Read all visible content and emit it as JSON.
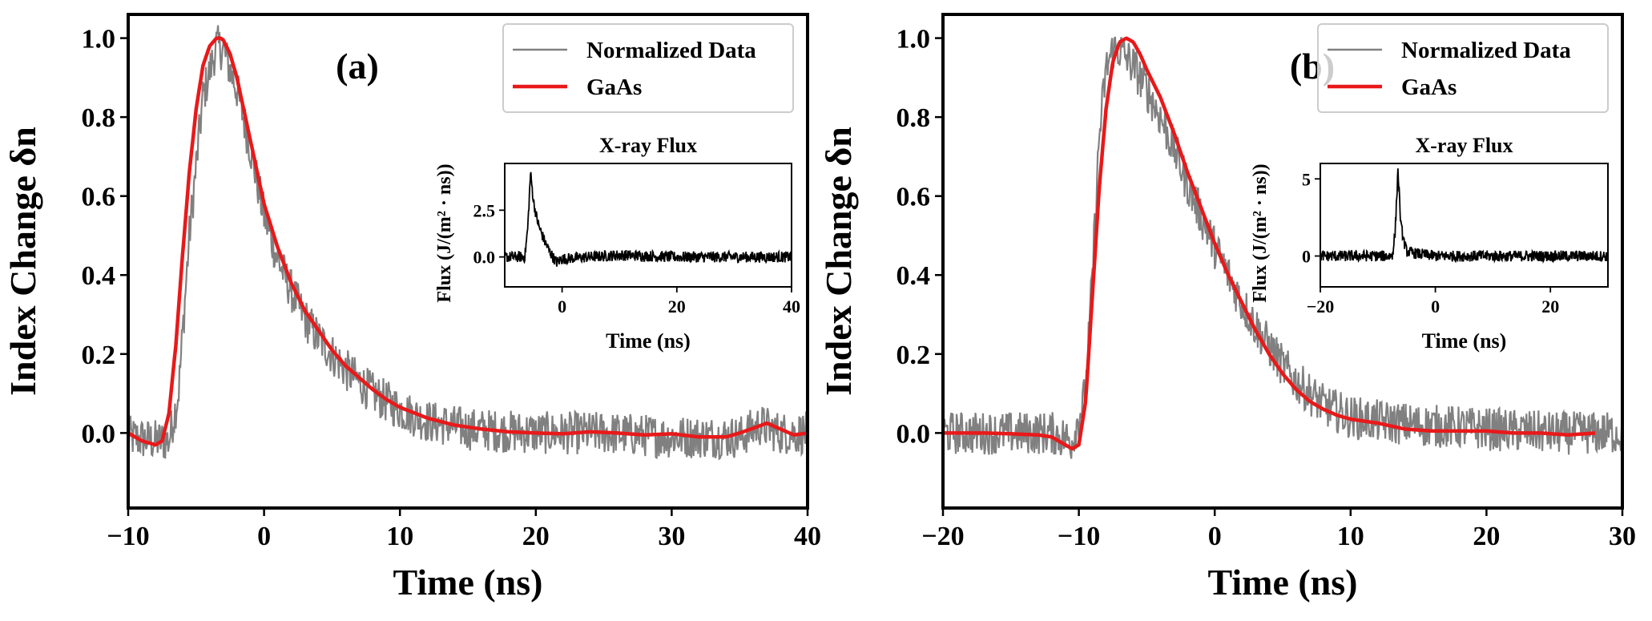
{
  "chart_data": [
    {
      "type": "line",
      "panel_label": "(a)",
      "xlabel": "Time (ns)",
      "ylabel": "Index Change δn",
      "xlim": [
        -10,
        40
      ],
      "ylim": [
        -0.19,
        1.06
      ],
      "xticks": [
        -10,
        0,
        10,
        20,
        30,
        40
      ],
      "xtick_labels": [
        "−10",
        "0",
        "10",
        "20",
        "30",
        "40"
      ],
      "yticks": [
        0.0,
        0.2,
        0.4,
        0.6,
        0.8,
        1.0
      ],
      "ytick_labels": [
        "0.0",
        "0.2",
        "0.4",
        "0.6",
        "0.8",
        "1.0"
      ],
      "legend_position": "top-right",
      "series": [
        {
          "name": "Normalized Data",
          "color": "#808080",
          "noisy": true,
          "x": [
            -10,
            -8,
            -7,
            -6.3,
            -5.5,
            -4.5,
            -3.5,
            -3,
            -2,
            -1,
            0,
            1,
            2,
            3,
            4,
            5,
            6,
            8,
            10,
            12,
            15,
            20,
            25,
            30,
            35,
            36.5,
            38,
            40
          ],
          "y": [
            -0.01,
            -0.02,
            -0.02,
            0.1,
            0.5,
            0.85,
            0.98,
            0.97,
            0.87,
            0.72,
            0.55,
            0.44,
            0.36,
            0.29,
            0.24,
            0.2,
            0.16,
            0.1,
            0.06,
            0.03,
            0.01,
            0.0,
            0.0,
            -0.01,
            -0.01,
            0.02,
            0.0,
            0.0
          ]
        },
        {
          "name": "GaAs",
          "color": "#e8191a",
          "x": [
            -10,
            -9,
            -8,
            -7.5,
            -7,
            -6.5,
            -6,
            -5.5,
            -5,
            -4.5,
            -4,
            -3.5,
            -3.2,
            -3,
            -2.5,
            -2,
            -1.5,
            -1,
            -0.5,
            0,
            1,
            2,
            3,
            4,
            5,
            6,
            7,
            8,
            9,
            10,
            12,
            14,
            16,
            18,
            20,
            22,
            24,
            26,
            28,
            30,
            32,
            34,
            35,
            36,
            37,
            38,
            39,
            40
          ],
          "y": [
            0.0,
            -0.02,
            -0.03,
            -0.02,
            0.05,
            0.22,
            0.45,
            0.66,
            0.82,
            0.93,
            0.98,
            1.0,
            1.0,
            0.995,
            0.96,
            0.9,
            0.82,
            0.74,
            0.66,
            0.58,
            0.47,
            0.38,
            0.31,
            0.26,
            0.21,
            0.17,
            0.14,
            0.11,
            0.085,
            0.065,
            0.038,
            0.02,
            0.01,
            0.003,
            0.0,
            -0.002,
            0.003,
            0.0,
            -0.005,
            -0.002,
            -0.01,
            -0.01,
            0.0,
            0.012,
            0.025,
            0.01,
            -0.005,
            0.0
          ]
        }
      ],
      "inset": {
        "title": "X-ray Flux",
        "xlabel": "Time (ns)",
        "ylabel": "Flux (J/(m² · ns))",
        "xlim": [
          -10,
          40
        ],
        "ylim": [
          -1.6,
          5.0
        ],
        "xticks": [
          0,
          20,
          40
        ],
        "xtick_labels": [
          "0",
          "20",
          "40"
        ],
        "yticks": [
          0.0,
          2.5
        ],
        "ytick_labels": [
          "0.0",
          "2.5"
        ],
        "series": [
          {
            "name": "X-ray Flux",
            "color": "#000000",
            "noisy": true,
            "x": [
              -10,
              -6.5,
              -6,
              -5.5,
              -5,
              -4.5,
              -4,
              -3,
              -2,
              -1,
              0,
              10,
              20,
              30,
              40
            ],
            "y": [
              0.0,
              0.0,
              1.5,
              4.5,
              3.0,
              2.2,
              1.6,
              0.8,
              0.2,
              -0.3,
              -0.1,
              0.1,
              0.0,
              0.0,
              0.0
            ]
          }
        ]
      }
    },
    {
      "type": "line",
      "panel_label": "(b)",
      "xlabel": "Time (ns)",
      "ylabel": "Index Change δn",
      "xlim": [
        -20,
        30
      ],
      "ylim": [
        -0.19,
        1.06
      ],
      "xticks": [
        -20,
        -10,
        0,
        10,
        20,
        30
      ],
      "xtick_labels": [
        "−20",
        "−10",
        "0",
        "10",
        "20",
        "30"
      ],
      "yticks": [
        0.0,
        0.2,
        0.4,
        0.6,
        0.8,
        1.0
      ],
      "ytick_labels": [
        "0.0",
        "0.2",
        "0.4",
        "0.6",
        "0.8",
        "1.0"
      ],
      "legend_position": "top-right",
      "series": [
        {
          "name": "Normalized Data",
          "color": "#808080",
          "noisy": true,
          "x": [
            -20,
            -12,
            -10.5,
            -9.5,
            -9,
            -8.5,
            -8,
            -7.5,
            -7,
            -6.5,
            -6,
            -5,
            -4,
            -3,
            -2,
            -1,
            0,
            1,
            2,
            3,
            4,
            5,
            6,
            8,
            10,
            12,
            15,
            20,
            25,
            30
          ],
          "y": [
            0.0,
            0.0,
            -0.02,
            0.1,
            0.4,
            0.75,
            0.92,
            0.97,
            0.97,
            0.95,
            0.93,
            0.87,
            0.8,
            0.72,
            0.63,
            0.55,
            0.47,
            0.4,
            0.33,
            0.27,
            0.22,
            0.17,
            0.13,
            0.07,
            0.04,
            0.03,
            0.02,
            0.01,
            0.0,
            0.0
          ]
        },
        {
          "name": "GaAs",
          "color": "#e8191a",
          "x": [
            -20,
            -17,
            -15,
            -13,
            -12,
            -11,
            -10.5,
            -10,
            -9.5,
            -9,
            -8.5,
            -8,
            -7.5,
            -7,
            -6.5,
            -6,
            -5.5,
            -5,
            -4,
            -3,
            -2,
            -1,
            0,
            1,
            2,
            3,
            4,
            5,
            6,
            7,
            8,
            9,
            10,
            12,
            14,
            16,
            18,
            20,
            22,
            24,
            26,
            28
          ],
          "y": [
            0.0,
            0.0,
            -0.002,
            -0.005,
            -0.01,
            -0.03,
            -0.04,
            -0.03,
            0.08,
            0.35,
            0.62,
            0.82,
            0.94,
            0.99,
            1.0,
            0.99,
            0.96,
            0.92,
            0.85,
            0.76,
            0.66,
            0.57,
            0.48,
            0.4,
            0.33,
            0.26,
            0.2,
            0.15,
            0.11,
            0.08,
            0.06,
            0.045,
            0.035,
            0.025,
            0.01,
            0.005,
            0.005,
            0.005,
            0.0,
            0.0,
            -0.005,
            0.0
          ]
        }
      ],
      "inset": {
        "title": "X-ray Flux",
        "xlabel": "Time (ns)",
        "ylabel": "Flux (J/(m² · ns))",
        "xlim": [
          -20,
          30
        ],
        "ylim": [
          -2.0,
          6.0
        ],
        "xticks": [
          -20,
          0,
          20
        ],
        "xtick_labels": [
          "−20",
          "0",
          "20"
        ],
        "yticks": [
          0,
          5
        ],
        "ytick_labels": [
          "0",
          "5"
        ],
        "series": [
          {
            "name": "X-ray Flux",
            "color": "#000000",
            "noisy": true,
            "x": [
              -20,
              -7.5,
              -7,
              -6.5,
              -6,
              -5.5,
              -5,
              -4,
              -2,
              0,
              10,
              20,
              30
            ],
            "y": [
              0.0,
              0.0,
              1.5,
              5.6,
              2.0,
              1.0,
              0.3,
              0.2,
              0.1,
              0.0,
              0.0,
              0.0,
              0.0
            ]
          }
        ]
      }
    }
  ]
}
